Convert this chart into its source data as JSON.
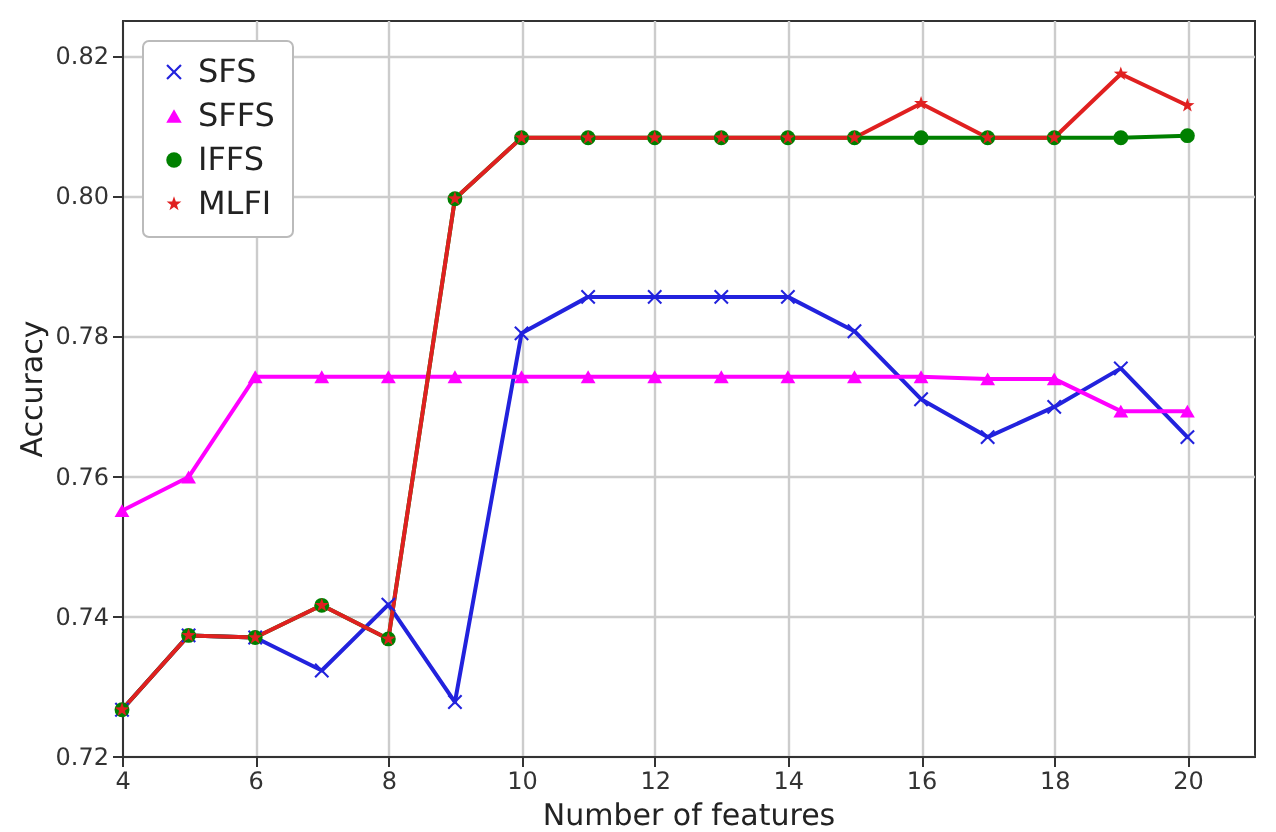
{
  "chart_data": {
    "type": "line",
    "xlabel": "Number of features",
    "ylabel": "Accuracy",
    "x": [
      4,
      5,
      6,
      7,
      8,
      9,
      10,
      11,
      12,
      13,
      14,
      15,
      16,
      17,
      18,
      19,
      20
    ],
    "series": [
      {
        "name": "SFS",
        "color": "#2222dd",
        "marker": "cross",
        "values": [
          0.7266,
          0.7372,
          0.7369,
          0.7322,
          0.7416,
          0.7277,
          0.7803,
          0.7855,
          0.7855,
          0.7855,
          0.7855,
          0.7806,
          0.7709,
          0.7655,
          0.7698,
          0.7753,
          0.7655
        ]
      },
      {
        "name": "SFFS",
        "color": "#ff00ff",
        "marker": "triangle",
        "values": [
          0.755,
          0.7598,
          0.7741,
          0.7741,
          0.7741,
          0.7741,
          0.7741,
          0.7741,
          0.7741,
          0.7741,
          0.7741,
          0.7741,
          0.7741,
          0.7738,
          0.7738,
          0.7692,
          0.7692
        ]
      },
      {
        "name": "IFFS",
        "color": "#008000",
        "marker": "circle",
        "values": [
          0.7266,
          0.7372,
          0.7369,
          0.7415,
          0.7367,
          0.7995,
          0.8082,
          0.8082,
          0.8082,
          0.8082,
          0.8082,
          0.8082,
          0.8082,
          0.8082,
          0.8082,
          0.8082,
          0.8085
        ]
      },
      {
        "name": "MLFI",
        "color": "#e02020",
        "marker": "star",
        "values": [
          0.7266,
          0.7372,
          0.7369,
          0.7415,
          0.7367,
          0.7995,
          0.8082,
          0.8082,
          0.8082,
          0.8082,
          0.8082,
          0.8082,
          0.8131,
          0.8082,
          0.8082,
          0.8173,
          0.8128
        ]
      }
    ],
    "xlim": [
      4,
      21
    ],
    "xticks": [
      4,
      6,
      8,
      10,
      12,
      14,
      16,
      18,
      20
    ],
    "ylim": [
      0.72,
      0.825
    ],
    "yticks": [
      0.72,
      0.74,
      0.76,
      0.78,
      {
        "value": 0.8,
        "label": "0.80"
      },
      0.82
    ],
    "grid": true,
    "legend": "top left",
    "line_style": "solid"
  }
}
